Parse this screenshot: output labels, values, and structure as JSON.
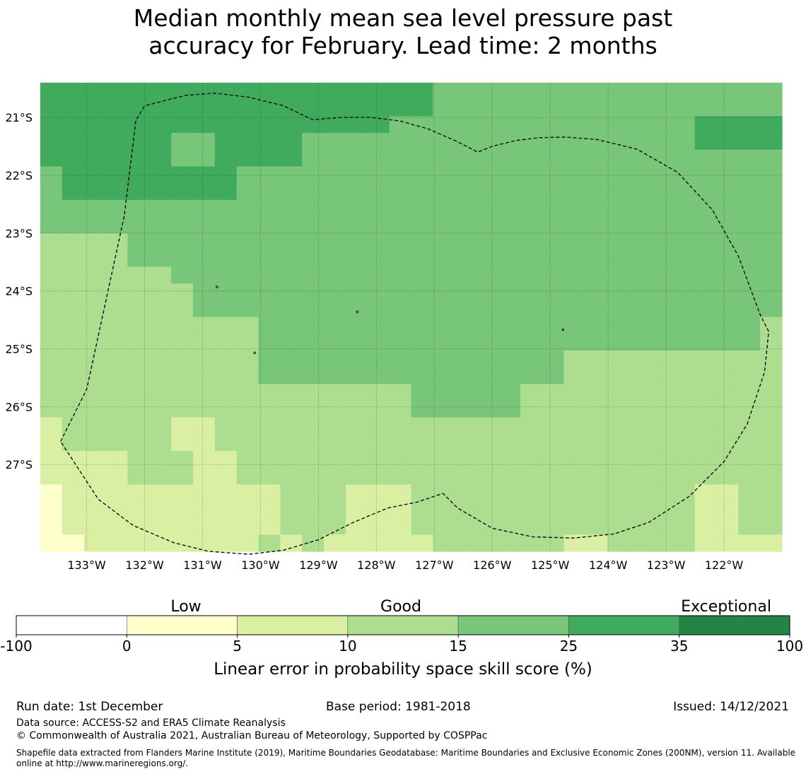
{
  "title": {
    "line1": "Median monthly mean sea level pressure past",
    "line2": "accuracy for February. Lead time: 2 months"
  },
  "map": {
    "lon_range": [
      -133.8,
      -121.0
    ],
    "lat_range": [
      -28.5,
      -20.4
    ],
    "lon_ticks": [
      {
        "v": -133,
        "label": "133°W"
      },
      {
        "v": -132,
        "label": "132°W"
      },
      {
        "v": -131,
        "label": "131°W"
      },
      {
        "v": -130,
        "label": "130°W"
      },
      {
        "v": -129,
        "label": "129°W"
      },
      {
        "v": -128,
        "label": "128°W"
      },
      {
        "v": -127,
        "label": "127°W"
      },
      {
        "v": -126,
        "label": "126°W"
      },
      {
        "v": -125,
        "label": "125°W"
      },
      {
        "v": -124,
        "label": "124°W"
      },
      {
        "v": -123,
        "label": "123°W"
      },
      {
        "v": -122,
        "label": "122°W"
      }
    ],
    "lat_ticks": [
      {
        "v": -21,
        "label": "21°S"
      },
      {
        "v": -22,
        "label": "22°S"
      },
      {
        "v": -23,
        "label": "23°S"
      },
      {
        "v": -24,
        "label": "24°S"
      },
      {
        "v": -25,
        "label": "25°S"
      },
      {
        "v": -26,
        "label": "26°S"
      },
      {
        "v": -27,
        "label": "27°S"
      }
    ],
    "class_colors": [
      "#ffffcc",
      "#d9f0a3",
      "#addd8e",
      "#78c679",
      "#41ab5d"
    ],
    "cell_rows": [
      "4444444444444444443333333333333333",
      "4444444444444444443333333333333333",
      "4444444444444444333333333333334444",
      "4444443344443333333333333333334444",
      "4444443344443333333333333333333333",
      "3444444443333333333333333333333333",
      "3444444443333333333333333333333333",
      "3333333333333333333333333333333333",
      "3333333333333333333333333333333333",
      "2222333333333333333333333333333333",
      "2222333333333333333333333333333333",
      "2222223333333333333333333333333333",
      "2222222333333333333333333333333333",
      "2222222333333333333333333333333333",
      "2222222222333333333333333333333332",
      "2222222222333333333333333333333332",
      "2222222222333333333333332222222222",
      "2222222222333333333333332222222222",
      "2222222222222222233333222222222222",
      "2222222222222222233333222222222222",
      "1222221122222222222222222222222222",
      "1222221122222222222222222222222222",
      "1111222112222222222222222222222222",
      "1111222112222222222222222222222222",
      "0111111111122211122222222222221122",
      "0111111111122211122222222222221122",
      "0111111111122211122222222222221122",
      "0011111111212111112222221122221111"
    ],
    "eez_boundary": [
      [
        -133.45,
        -26.6
      ],
      [
        -133.0,
        -25.7
      ],
      [
        -132.35,
        -22.7
      ],
      [
        -132.15,
        -21.05
      ],
      [
        -132.0,
        -20.8
      ],
      [
        -131.3,
        -20.62
      ],
      [
        -130.8,
        -20.58
      ],
      [
        -130.2,
        -20.65
      ],
      [
        -129.6,
        -20.8
      ],
      [
        -129.1,
        -21.04
      ],
      [
        -128.6,
        -21.0
      ],
      [
        -128.1,
        -21.0
      ],
      [
        -127.6,
        -21.06
      ],
      [
        -127.1,
        -21.2
      ],
      [
        -126.6,
        -21.42
      ],
      [
        -126.25,
        -21.6
      ],
      [
        -126.0,
        -21.5
      ],
      [
        -125.6,
        -21.4
      ],
      [
        -125.2,
        -21.35
      ],
      [
        -124.75,
        -21.34
      ],
      [
        -124.2,
        -21.38
      ],
      [
        -123.5,
        -21.55
      ],
      [
        -122.8,
        -21.95
      ],
      [
        -122.2,
        -22.6
      ],
      [
        -121.75,
        -23.4
      ],
      [
        -121.38,
        -24.4
      ],
      [
        -121.23,
        -24.7
      ],
      [
        -121.3,
        -25.4
      ],
      [
        -121.6,
        -26.3
      ],
      [
        -122.0,
        -26.95
      ],
      [
        -122.6,
        -27.55
      ],
      [
        -123.3,
        -28.0
      ],
      [
        -123.9,
        -28.2
      ],
      [
        -124.6,
        -28.27
      ],
      [
        -125.3,
        -28.25
      ],
      [
        -126.0,
        -28.1
      ],
      [
        -126.6,
        -27.75
      ],
      [
        -126.85,
        -27.5
      ],
      [
        -127.3,
        -27.65
      ],
      [
        -127.8,
        -27.75
      ],
      [
        -128.4,
        -28.0
      ],
      [
        -129.0,
        -28.3
      ],
      [
        -129.6,
        -28.48
      ],
      [
        -130.2,
        -28.55
      ],
      [
        -130.9,
        -28.5
      ],
      [
        -131.5,
        -28.35
      ],
      [
        -132.2,
        -28.05
      ],
      [
        -132.8,
        -27.6
      ],
      [
        -133.45,
        -26.6
      ]
    ],
    "islands": [
      {
        "lon": -130.75,
        "lat": -23.93
      },
      {
        "lon": -128.33,
        "lat": -24.36
      },
      {
        "lon": -124.78,
        "lat": -24.67
      },
      {
        "lon": -130.1,
        "lat": -25.07
      }
    ]
  },
  "legend": {
    "category_labels": [
      "Low",
      "Good",
      "Exceptional"
    ],
    "tick_labels": [
      "-100",
      "0",
      "5",
      "10",
      "15",
      "25",
      "35",
      "100"
    ],
    "colors": [
      "#ffffff",
      "#ffffcc",
      "#d9f0a3",
      "#addd8e",
      "#78c679",
      "#41ab5d",
      "#238443"
    ],
    "axis_label": "Linear error in probability space skill score (%)"
  },
  "footer": {
    "run_date": "Run date: 1st December",
    "base_period": "Base period: 1981-2018",
    "issued": "Issued: 14/12/2021",
    "data_source": "Data source: ACCESS-S2 and ERA5 Climate Reanalysis",
    "copyright": "© Commonwealth of Australia 2021, Australian Bureau of Meteorology, Supported by COSPPac",
    "shapefile_note": "Shapefile data extracted from Flanders Marine Institute (2019), Maritime Boundaries Geodatabase: Maritime Boundaries and Exclusive Economic Zones (200NM), version 11. Available online at http://www.marineregions.org/."
  }
}
